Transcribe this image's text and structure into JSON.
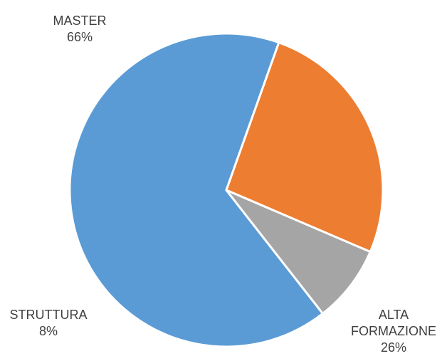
{
  "chart_data": {
    "type": "pie",
    "title": "",
    "slices": [
      {
        "label": [
          "MASTER"
        ],
        "value_label": "66%",
        "value": 66,
        "color": "#5b9bd5"
      },
      {
        "label": [
          "ALTA",
          "FORMAZIONE"
        ],
        "value_label": "26%",
        "value": 26,
        "color": "#ed7d31"
      },
      {
        "label": [
          "STRUTTURA"
        ],
        "value_label": "8%",
        "value": 8,
        "color": "#a5a5a5"
      }
    ],
    "start_angle_deg": 142,
    "direction": "clockwise",
    "legend": "none",
    "data_labels": "outside"
  }
}
